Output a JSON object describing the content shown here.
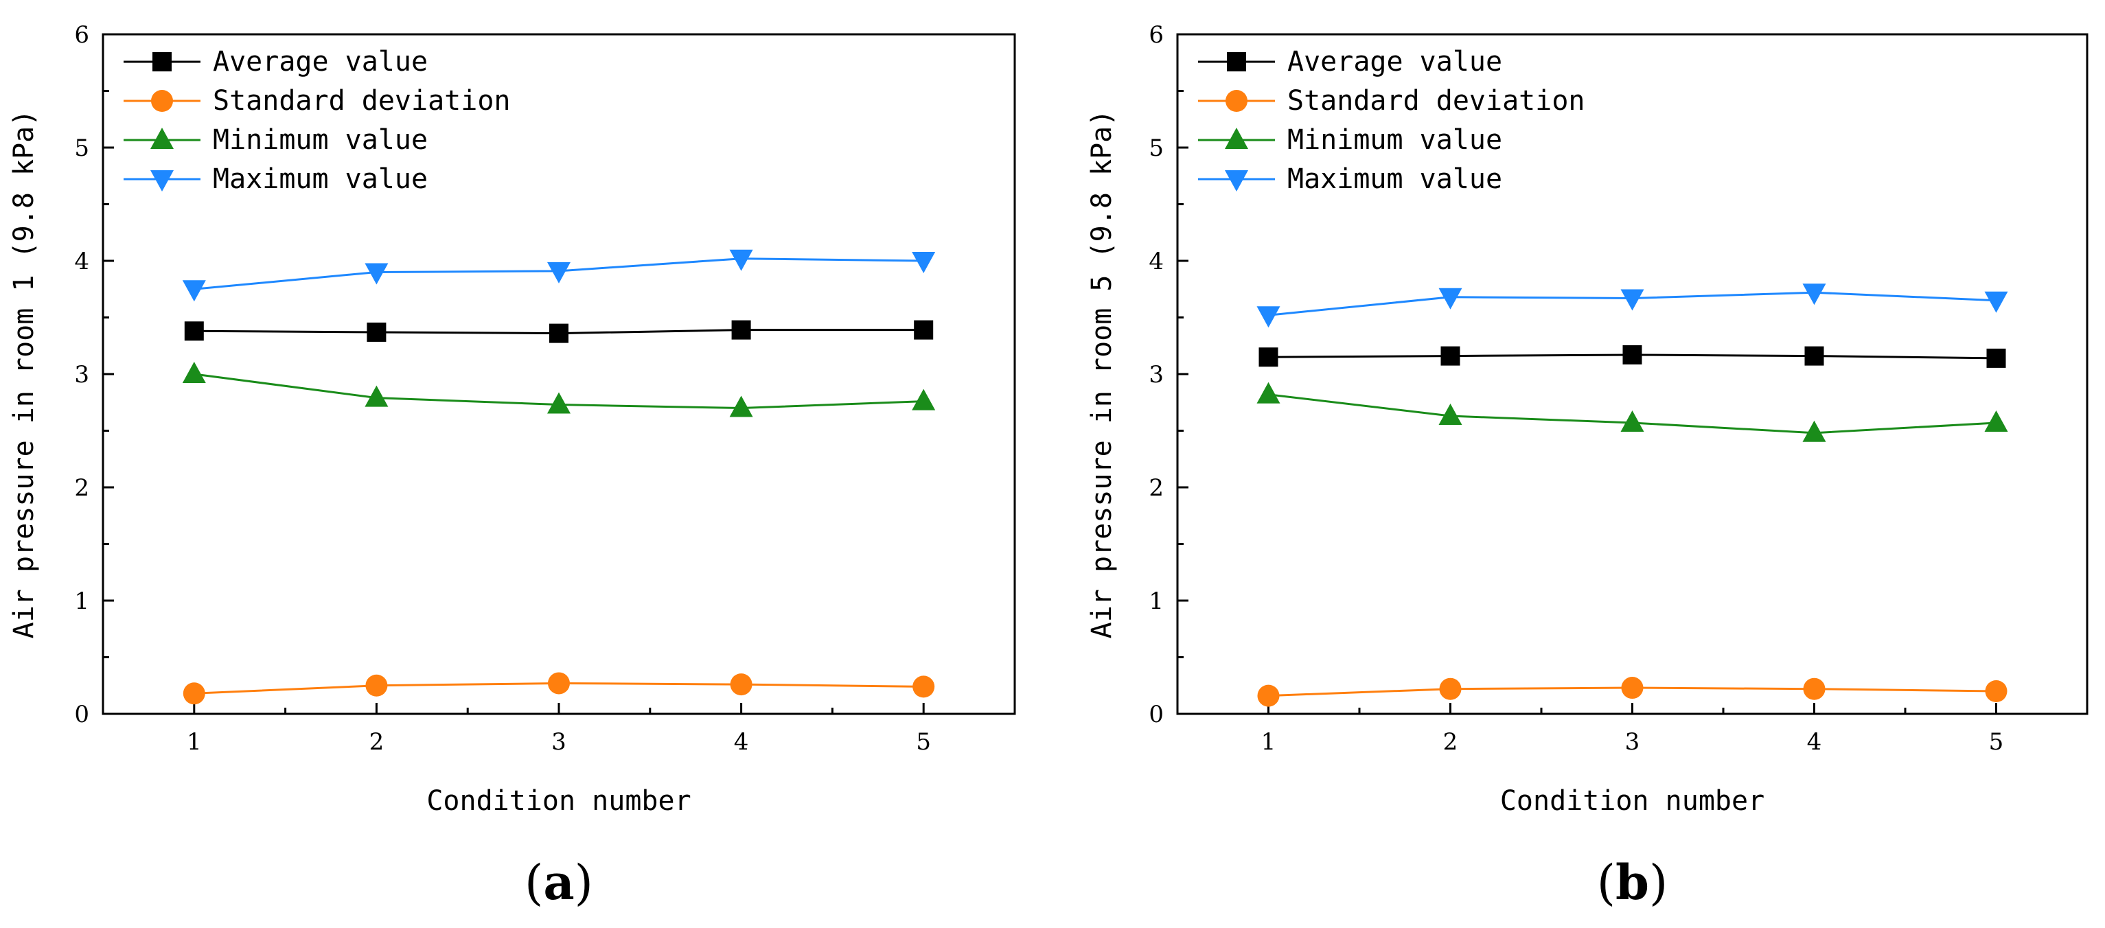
{
  "chart_data": [
    {
      "type": "line",
      "panel_label": "a",
      "xlabel": "Condition number",
      "ylabel": "Air pressure in room 1 (9.8 kPa)",
      "x": [
        1,
        2,
        3,
        4,
        5
      ],
      "xlim": [
        0.5,
        5.5
      ],
      "ylim": [
        0,
        6
      ],
      "yticks": [
        0,
        1,
        2,
        3,
        4,
        5,
        6
      ],
      "legend_position": "top-left",
      "series": [
        {
          "name": "Average value",
          "color": "#000000",
          "marker": "square",
          "values": [
            3.38,
            3.37,
            3.36,
            3.39,
            3.39
          ]
        },
        {
          "name": "Standard deviation",
          "color": "#ff7f0e",
          "marker": "circle",
          "values": [
            0.18,
            0.25,
            0.27,
            0.26,
            0.24
          ]
        },
        {
          "name": "Minimum value",
          "color": "#1a8c1a",
          "marker": "triangle-up",
          "values": [
            3.0,
            2.79,
            2.73,
            2.7,
            2.76
          ]
        },
        {
          "name": "Maximum value",
          "color": "#1e88ff",
          "marker": "triangle-down",
          "values": [
            3.75,
            3.9,
            3.91,
            4.02,
            4.0
          ]
        }
      ]
    },
    {
      "type": "line",
      "panel_label": "b",
      "xlabel": "Condition number",
      "ylabel": "Air pressure in room 5 (9.8 kPa)",
      "x": [
        1,
        2,
        3,
        4,
        5
      ],
      "xlim": [
        0.5,
        5.5
      ],
      "ylim": [
        0,
        6
      ],
      "yticks": [
        0,
        1,
        2,
        3,
        4,
        5,
        6
      ],
      "legend_position": "top-left",
      "series": [
        {
          "name": "Average value",
          "color": "#000000",
          "marker": "square",
          "values": [
            3.15,
            3.16,
            3.17,
            3.16,
            3.14
          ]
        },
        {
          "name": "Standard deviation",
          "color": "#ff7f0e",
          "marker": "circle",
          "values": [
            0.16,
            0.22,
            0.23,
            0.22,
            0.2
          ]
        },
        {
          "name": "Minimum value",
          "color": "#1a8c1a",
          "marker": "triangle-up",
          "values": [
            2.82,
            2.63,
            2.57,
            2.48,
            2.57
          ]
        },
        {
          "name": "Maximum value",
          "color": "#1e88ff",
          "marker": "triangle-down",
          "values": [
            3.52,
            3.68,
            3.67,
            3.72,
            3.65
          ]
        }
      ]
    }
  ]
}
